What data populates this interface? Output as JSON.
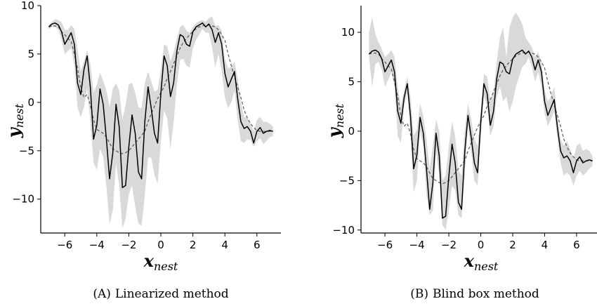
{
  "chart_data": [
    {
      "type": "line",
      "panel": "(A)",
      "caption": "Linearized method",
      "xlabel": "x",
      "xlabel_sub": "nest",
      "ylabel": "y",
      "ylabel_sub": "nest",
      "xlim": [
        -7.5,
        7.5
      ],
      "ylim": [
        -13.5,
        10
      ],
      "xticks": [
        -6,
        -4,
        -2,
        0,
        2,
        4,
        6
      ],
      "yticks": [
        -10,
        -5,
        0,
        5,
        10
      ],
      "x": [
        -7.0,
        -6.8,
        -6.6,
        -6.4,
        -6.2,
        -6.0,
        -5.8,
        -5.6,
        -5.4,
        -5.2,
        -5.0,
        -4.8,
        -4.6,
        -4.4,
        -4.2,
        -4.0,
        -3.8,
        -3.6,
        -3.4,
        -3.2,
        -3.0,
        -2.8,
        -2.6,
        -2.4,
        -2.2,
        -2.0,
        -1.8,
        -1.6,
        -1.4,
        -1.2,
        -1.0,
        -0.8,
        -0.6,
        -0.4,
        -0.2,
        0.0,
        0.2,
        0.4,
        0.6,
        0.8,
        1.0,
        1.2,
        1.4,
        1.6,
        1.8,
        2.0,
        2.2,
        2.4,
        2.6,
        2.8,
        3.0,
        3.2,
        3.4,
        3.6,
        3.8,
        4.0,
        4.2,
        4.4,
        4.6,
        4.8,
        5.0,
        5.2,
        5.4,
        5.6,
        5.8,
        6.0,
        6.2,
        6.4,
        6.6,
        6.8,
        7.0
      ],
      "series": [
        {
          "role": "mean",
          "style": "solid",
          "color": "#000000",
          "values": [
            7.8,
            8.1,
            8.2,
            8.0,
            7.3,
            6.0,
            6.6,
            7.2,
            6.0,
            2.0,
            0.8,
            3.4,
            4.8,
            1.5,
            -3.8,
            -2.4,
            1.4,
            -0.2,
            -3.8,
            -7.9,
            -5.2,
            -0.2,
            -2.5,
            -8.8,
            -8.6,
            -4.6,
            -1.3,
            -3.2,
            -7.2,
            -7.9,
            -2.0,
            1.6,
            -0.6,
            -3.2,
            -4.2,
            0.9,
            4.8,
            3.8,
            0.6,
            2.0,
            5.3,
            7.0,
            6.8,
            6.0,
            5.8,
            7.3,
            7.8,
            8.0,
            8.2,
            7.8,
            8.1,
            7.5,
            6.2,
            7.2,
            6.0,
            3.0,
            1.6,
            2.4,
            3.2,
            0.4,
            -2.0,
            -2.7,
            -2.5,
            -3.0,
            -4.2,
            -3.0,
            -2.6,
            -3.2,
            -3.0,
            -2.9,
            -3.0
          ]
        },
        {
          "role": "reference",
          "style": "dashed",
          "color": "#555555",
          "values": [
            7.8,
            7.9,
            7.9,
            7.8,
            7.3,
            7.0,
            6.6,
            6.3,
            5.0,
            3.5,
            1.5,
            0.5,
            0.8,
            -0.3,
            -1.8,
            -2.8,
            -3.0,
            -3.2,
            -3.6,
            -4.2,
            -4.8,
            -5.0,
            -5.2,
            -5.3,
            -5.2,
            -5.0,
            -4.6,
            -4.2,
            -3.8,
            -3.4,
            -3.0,
            -2.0,
            -1.2,
            -0.4,
            0.4,
            1.0,
            1.6,
            2.5,
            3.2,
            4.0,
            4.8,
            5.6,
            6.2,
            6.6,
            7.0,
            7.3,
            7.6,
            7.8,
            7.9,
            8.0,
            8.0,
            7.9,
            7.8,
            7.5,
            7.0,
            6.4,
            5.0,
            3.8,
            2.6,
            1.6,
            0.5,
            -0.8,
            -1.6,
            -2.2,
            -2.6,
            -2.9,
            -3.0,
            -3.0,
            -3.0,
            -3.0,
            -3.0
          ]
        },
        {
          "role": "band-upper",
          "style": "fill",
          "color": "#d9d9d9",
          "values": [
            8.0,
            8.3,
            8.6,
            8.5,
            8.3,
            7.5,
            7.5,
            8.0,
            7.6,
            5.5,
            3.2,
            4.3,
            5.4,
            4.0,
            1.0,
            1.8,
            3.1,
            2.2,
            1.2,
            -0.5,
            1.4,
            2.0,
            1.2,
            -1.8,
            -0.3,
            1.9,
            2.0,
            1.0,
            -0.5,
            -0.6,
            2.0,
            3.2,
            2.2,
            1.1,
            1.3,
            3.4,
            6.0,
            5.8,
            4.3,
            5.2,
            6.6,
            7.8,
            8.0,
            7.4,
            7.2,
            7.8,
            8.2,
            8.4,
            8.5,
            8.3,
            8.7,
            8.9,
            7.9,
            8.0,
            7.4,
            4.5,
            3.5,
            3.7,
            4.2,
            2.5,
            0.0,
            -1.5,
            -1.6,
            -2.2,
            -3.0,
            -1.8,
            -1.5,
            -2.0,
            -2.0,
            -2.2,
            -2.5
          ]
        },
        {
          "role": "band-lower",
          "style": "fill",
          "color": "#d9d9d9",
          "values": [
            7.5,
            7.8,
            7.8,
            7.5,
            6.4,
            5.0,
            5.3,
            5.6,
            3.8,
            -0.5,
            -1.5,
            -0.5,
            1.5,
            -2.1,
            -6.2,
            -7.0,
            -4.8,
            -5.6,
            -8.7,
            -12.6,
            -11.2,
            -6.3,
            -8.6,
            -13.0,
            -12.0,
            -9.5,
            -8.6,
            -10.8,
            -12.5,
            -12.8,
            -9.6,
            -5.7,
            -5.7,
            -7.5,
            -8.4,
            -4.1,
            -0.8,
            -1.7,
            -4.8,
            -2.1,
            1.8,
            4.4,
            4.5,
            3.8,
            3.6,
            5.6,
            6.5,
            7.0,
            7.6,
            7.2,
            7.2,
            5.7,
            3.6,
            5.0,
            3.3,
            0.5,
            -0.6,
            0.0,
            1.2,
            -1.8,
            -4.0,
            -4.2,
            -3.8,
            -3.9,
            -4.6,
            -4.0,
            -3.7,
            -4.3,
            -4.0,
            -3.6,
            -3.5
          ]
        }
      ]
    },
    {
      "type": "line",
      "panel": "(B)",
      "caption": "Blind box method",
      "xlabel": "x",
      "xlabel_sub": "nest",
      "ylabel": "y",
      "ylabel_sub": "nest",
      "xlim": [
        -7.5,
        7.5
      ],
      "ylim": [
        -10.3,
        12.7
      ],
      "xticks": [
        -6,
        -4,
        -2,
        0,
        2,
        4,
        6
      ],
      "yticks": [
        -10,
        -5,
        0,
        5,
        10
      ],
      "x": [
        -7.0,
        -6.8,
        -6.6,
        -6.4,
        -6.2,
        -6.0,
        -5.8,
        -5.6,
        -5.4,
        -5.2,
        -5.0,
        -4.8,
        -4.6,
        -4.4,
        -4.2,
        -4.0,
        -3.8,
        -3.6,
        -3.4,
        -3.2,
        -3.0,
        -2.8,
        -2.6,
        -2.4,
        -2.2,
        -2.0,
        -1.8,
        -1.6,
        -1.4,
        -1.2,
        -1.0,
        -0.8,
        -0.6,
        -0.4,
        -0.2,
        0.0,
        0.2,
        0.4,
        0.6,
        0.8,
        1.0,
        1.2,
        1.4,
        1.6,
        1.8,
        2.0,
        2.2,
        2.4,
        2.6,
        2.8,
        3.0,
        3.2,
        3.4,
        3.6,
        3.8,
        4.0,
        4.2,
        4.4,
        4.6,
        4.8,
        5.0,
        5.2,
        5.4,
        5.6,
        5.8,
        6.0,
        6.2,
        6.4,
        6.6,
        6.8,
        7.0
      ],
      "series": [
        {
          "role": "mean",
          "style": "solid",
          "color": "#000000",
          "values": [
            7.8,
            8.1,
            8.2,
            8.0,
            7.3,
            6.0,
            6.6,
            7.2,
            6.0,
            2.0,
            0.8,
            3.4,
            4.8,
            1.5,
            -3.8,
            -2.4,
            1.4,
            -0.2,
            -3.8,
            -7.9,
            -5.2,
            -0.2,
            -2.5,
            -8.8,
            -8.6,
            -4.6,
            -1.3,
            -3.2,
            -7.2,
            -7.9,
            -2.0,
            1.6,
            -0.6,
            -3.2,
            -4.2,
            0.9,
            4.8,
            3.8,
            0.6,
            2.0,
            5.3,
            7.0,
            6.8,
            6.0,
            5.8,
            7.3,
            7.8,
            8.0,
            8.2,
            7.8,
            8.1,
            7.5,
            6.2,
            7.2,
            6.0,
            3.0,
            1.6,
            2.4,
            3.2,
            0.4,
            -2.0,
            -2.7,
            -2.5,
            -3.0,
            -4.2,
            -3.0,
            -2.6,
            -3.2,
            -3.0,
            -2.9,
            -3.0
          ]
        },
        {
          "role": "reference",
          "style": "dashed",
          "color": "#555555",
          "values": [
            7.8,
            7.9,
            7.9,
            7.8,
            7.3,
            7.0,
            6.6,
            6.3,
            5.0,
            3.5,
            1.5,
            0.5,
            0.8,
            -0.3,
            -1.8,
            -2.8,
            -3.0,
            -3.2,
            -3.6,
            -4.2,
            -4.8,
            -5.0,
            -5.2,
            -5.3,
            -5.2,
            -5.0,
            -4.6,
            -4.2,
            -3.8,
            -3.4,
            -3.0,
            -2.0,
            -1.2,
            -0.4,
            0.4,
            1.0,
            1.6,
            2.5,
            3.2,
            4.0,
            4.8,
            5.6,
            6.2,
            6.6,
            7.0,
            7.3,
            7.6,
            7.8,
            7.9,
            8.0,
            8.0,
            7.9,
            7.8,
            7.5,
            7.0,
            6.4,
            5.0,
            3.8,
            2.6,
            1.6,
            0.5,
            -0.8,
            -1.6,
            -2.2,
            -2.6,
            -2.9,
            -3.0,
            -3.0,
            -3.0,
            -3.0,
            -3.0
          ]
        },
        {
          "role": "band-upper",
          "style": "fill",
          "color": "#d9d9d9",
          "values": [
            10.0,
            11.5,
            9.8,
            9.0,
            8.3,
            7.5,
            7.8,
            8.2,
            7.5,
            4.5,
            2.5,
            4.2,
            5.5,
            3.5,
            -0.5,
            0.2,
            2.8,
            1.5,
            -0.8,
            -3.8,
            -1.5,
            1.2,
            0.0,
            -5.0,
            -4.5,
            -1.5,
            1.0,
            -0.5,
            -4.0,
            -4.5,
            0.2,
            2.8,
            1.2,
            -0.8,
            -1.5,
            2.2,
            5.8,
            5.5,
            3.0,
            4.0,
            7.0,
            9.5,
            10.5,
            7.5,
            10.5,
            11.5,
            12.0,
            11.5,
            10.8,
            9.5,
            9.0,
            8.5,
            7.5,
            8.0,
            7.0,
            4.2,
            3.0,
            3.5,
            4.5,
            1.5,
            -0.8,
            -1.5,
            -1.0,
            -1.8,
            -2.8,
            -1.5,
            -1.2,
            -2.0,
            -1.8,
            -2.0,
            -2.5
          ]
        },
        {
          "role": "band-lower",
          "style": "fill",
          "color": "#d9d9d9",
          "values": [
            7.5,
            4.5,
            6.8,
            7.0,
            6.2,
            4.5,
            5.2,
            6.0,
            4.5,
            -0.5,
            -1.2,
            2.5,
            3.8,
            -0.5,
            -6.2,
            -5.0,
            0.0,
            -1.5,
            -6.5,
            -8.5,
            -8.0,
            -2.0,
            -4.5,
            -9.5,
            -10.0,
            -8.0,
            -5.5,
            -6.0,
            -8.5,
            -8.8,
            -4.5,
            0.5,
            -2.2,
            -5.0,
            -5.5,
            -0.5,
            3.5,
            2.5,
            -0.5,
            0.5,
            3.5,
            4.5,
            3.0,
            3.5,
            2.0,
            3.0,
            4.5,
            5.5,
            6.5,
            6.8,
            7.5,
            6.5,
            5.0,
            6.0,
            4.5,
            1.8,
            0.5,
            1.2,
            2.0,
            -0.8,
            -3.2,
            -4.5,
            -4.2,
            -4.5,
            -5.5,
            -4.5,
            -4.0,
            -4.5,
            -4.2,
            -3.8,
            -3.5
          ]
        }
      ]
    }
  ]
}
